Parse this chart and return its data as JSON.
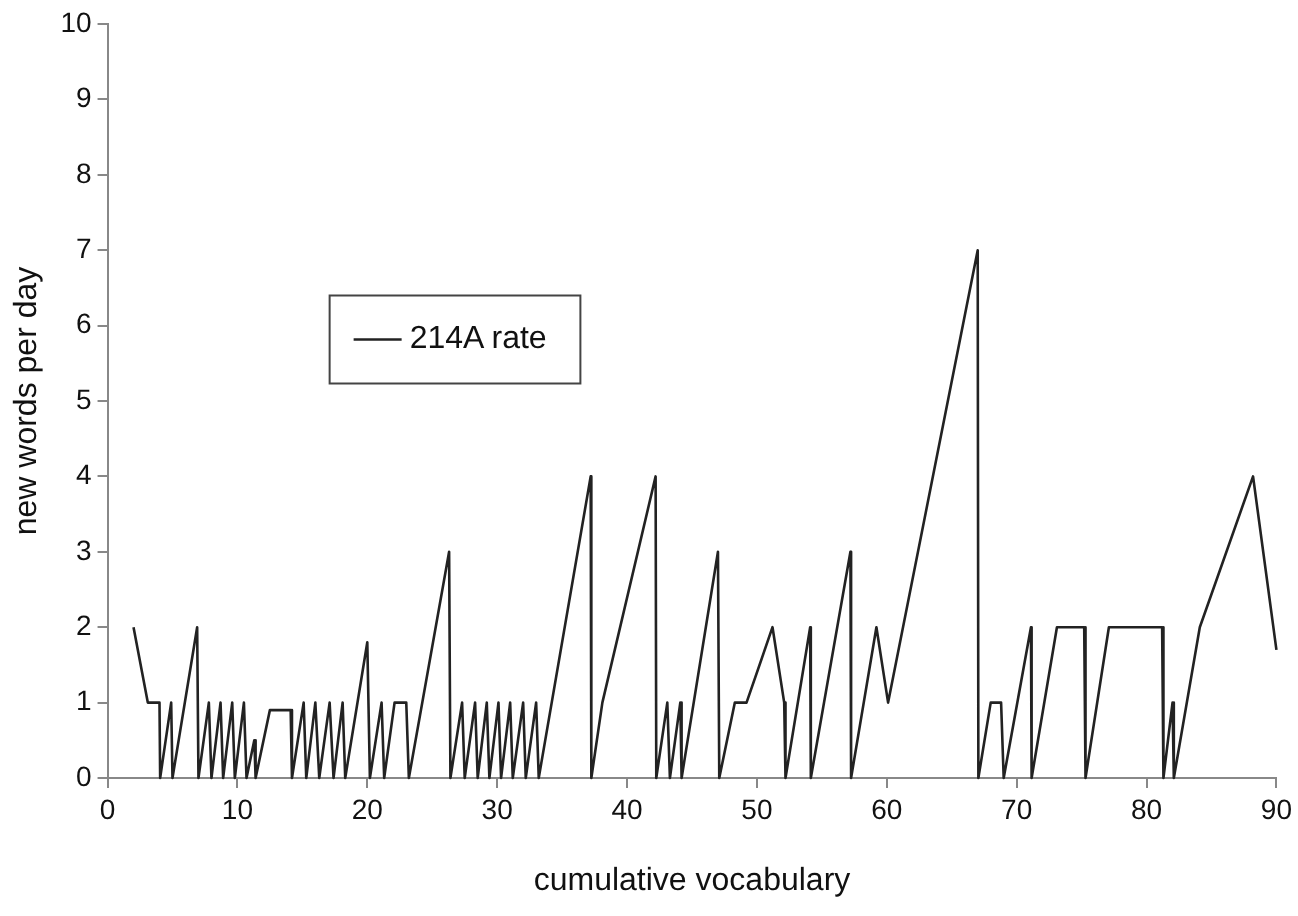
{
  "chart_data": {
    "type": "line",
    "xlabel": "cumulative vocabulary",
    "ylabel": "new words per day",
    "xlim": [
      0,
      90
    ],
    "xticks": [
      0,
      10,
      20,
      30,
      40,
      50,
      60,
      70,
      80,
      90
    ],
    "ylim": [
      0,
      10
    ],
    "yticks": [
      0,
      1,
      2,
      3,
      4,
      5,
      6,
      7,
      8,
      9,
      10
    ],
    "grid": false,
    "legend": "top left",
    "marker": "none",
    "line_style": "solid",
    "series": [
      {
        "name": "214A rate",
        "color": "#222222",
        "x": [
          2,
          3.1,
          4,
          4.05,
          4.9,
          5,
          6.9,
          7,
          7.8,
          8,
          8.7,
          8.9,
          9.6,
          9.8,
          10.5,
          10.7,
          11.3,
          11.4,
          12.5,
          14.1,
          14.2,
          15.1,
          15.3,
          16,
          16.3,
          17.1,
          17.4,
          18.1,
          18.3,
          20,
          20.2,
          21.1,
          21.3,
          22.1,
          23,
          23.2,
          26.3,
          26.4,
          27.3,
          27.5,
          28.3,
          28.5,
          29.2,
          29.4,
          30.1,
          30.3,
          31,
          31.2,
          32,
          32.2,
          33,
          33.2,
          37.2,
          37.25,
          38.1,
          42.2,
          42.25,
          43.1,
          43.3,
          44.1,
          44.2,
          47,
          47.1,
          48.3,
          49.2,
          51.2,
          52.1,
          52.2,
          54.1,
          54.15,
          57.2,
          57.25,
          59.2,
          60.1,
          67,
          67.05,
          68,
          68.8,
          69,
          71.1,
          71.15,
          73.1,
          75.2,
          75.3,
          77.1,
          81.2,
          81.3,
          82,
          82.1,
          84.1,
          88.2,
          90
        ],
        "values": [
          2,
          1,
          1,
          0,
          1,
          0,
          2,
          0,
          1,
          0,
          1,
          0,
          1,
          0,
          1,
          0,
          0.5,
          0,
          0.9,
          0.9,
          0,
          1,
          0,
          1,
          0,
          1,
          0,
          1,
          0,
          1.8,
          0,
          1,
          0,
          1,
          1,
          0,
          3,
          0,
          1,
          0,
          1,
          0,
          1,
          0,
          1,
          0,
          1,
          0,
          1,
          0,
          1,
          0,
          4,
          0,
          1,
          4,
          0,
          1,
          0,
          1,
          0,
          3,
          0,
          1,
          1,
          2,
          1,
          0,
          2,
          0,
          3,
          0,
          2,
          1,
          7,
          0,
          1,
          1,
          0,
          2,
          0,
          2,
          2,
          0,
          2,
          2,
          0,
          1,
          0,
          2,
          4,
          1.7
        ]
      }
    ]
  }
}
